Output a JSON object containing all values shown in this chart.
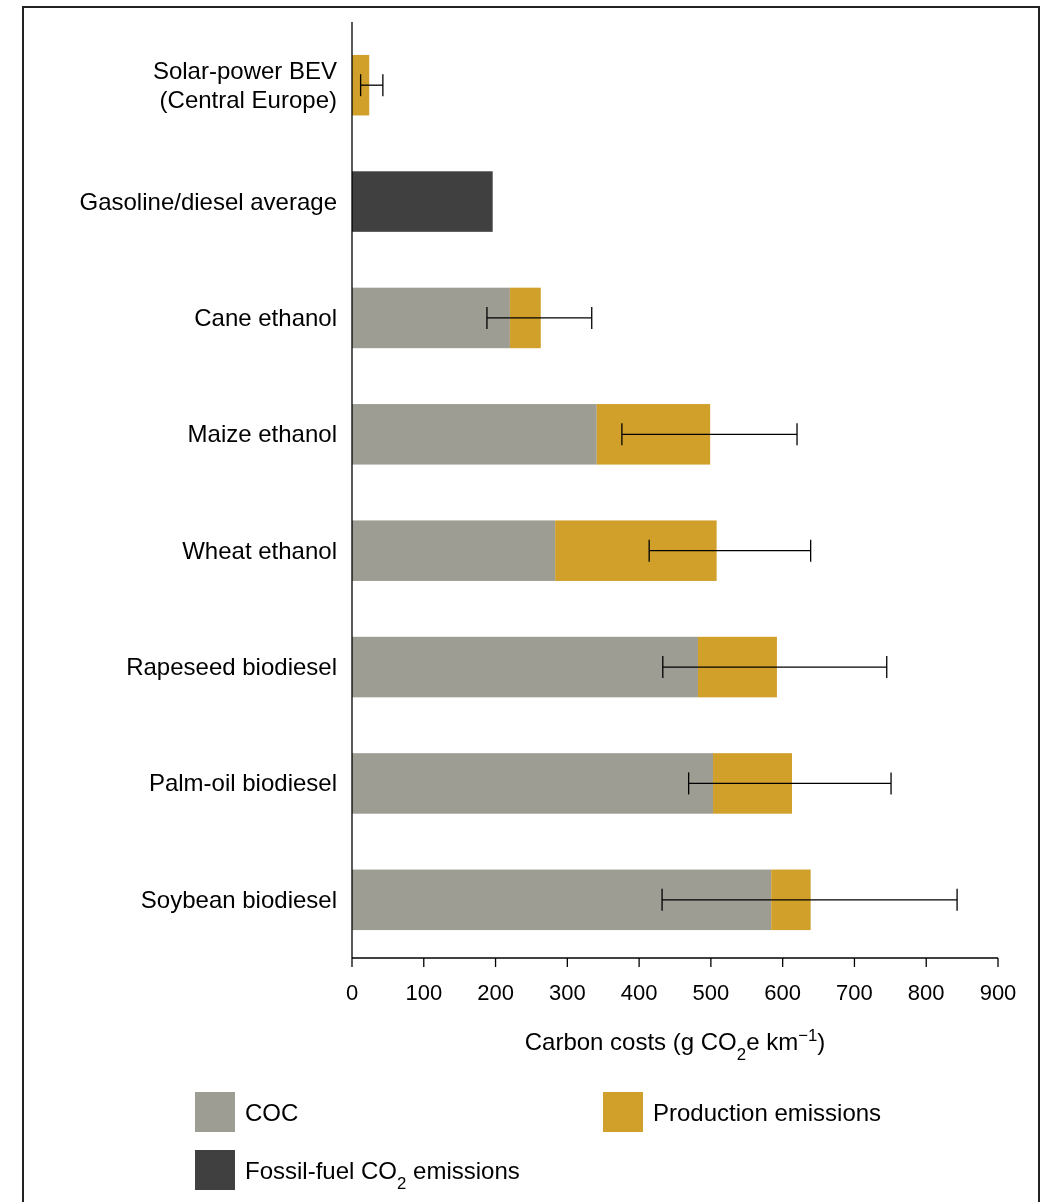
{
  "chart_data": {
    "type": "bar",
    "orientation": "horizontal",
    "stacked": true,
    "categories": [
      "Solar-power BEV (Central Europe)",
      "Gasoline/diesel average",
      "Cane ethanol",
      "Maize ethanol",
      "Wheat ethanol",
      "Rapeseed biodiesel",
      "Palm-oil biodiesel",
      "Soybean biodiesel"
    ],
    "series": [
      {
        "name": "COC",
        "color": "#9d9d93",
        "values": [
          null,
          null,
          220,
          341,
          283,
          482,
          503,
          584
        ]
      },
      {
        "name": "Fossil-fuel CO$_{2}$ emissions",
        "color": "#404040",
        "values": [
          null,
          196,
          null,
          null,
          null,
          null,
          null,
          null
        ]
      },
      {
        "name": "Production emissions",
        "color": "#d1a02a",
        "values": [
          24,
          null,
          43,
          158,
          225,
          110,
          110,
          55
        ],
        "errors": [
          [
            12,
            43
          ],
          null,
          [
            188,
            334
          ],
          [
            376,
            620
          ],
          [
            414,
            639
          ],
          [
            433,
            745
          ],
          [
            469,
            751
          ],
          [
            432,
            843
          ]
        ]
      }
    ],
    "xlim": [
      0,
      900
    ],
    "xticks": [
      0,
      100,
      200,
      300,
      400,
      500,
      600,
      700,
      800,
      900
    ],
    "xlabel": "Carbon costs (g CO$_{2}$e km$^{−1}$)",
    "legend": "bottom",
    "grid": false
  }
}
